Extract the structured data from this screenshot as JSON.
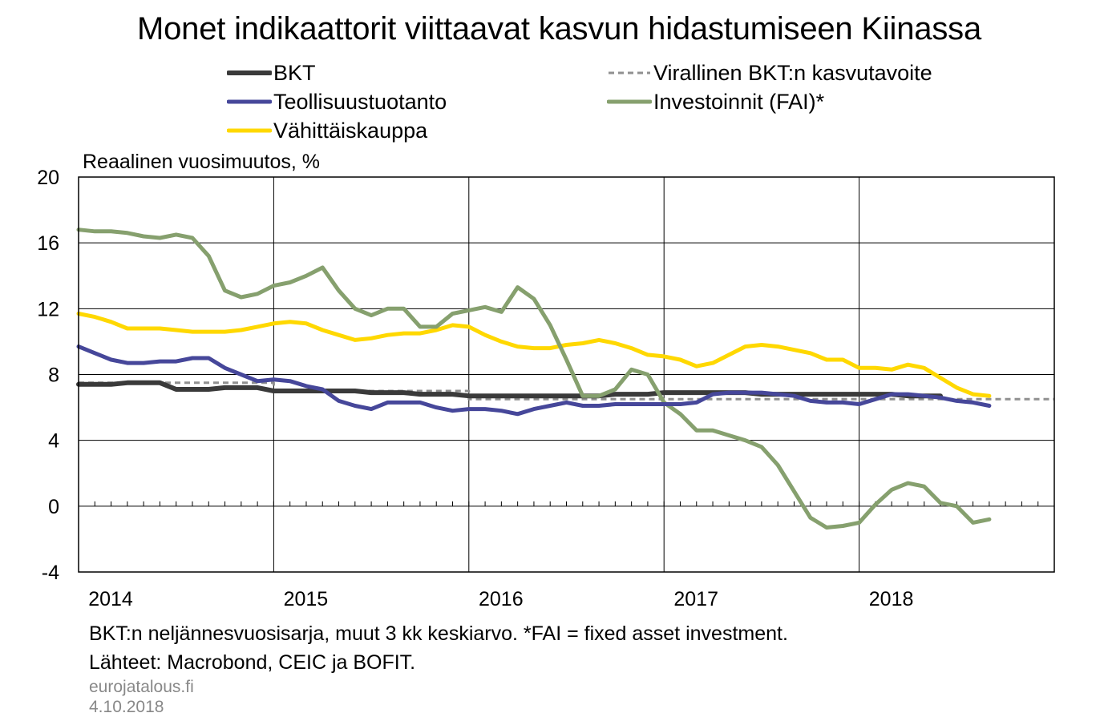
{
  "chart_data": {
    "type": "line",
    "title": "Monet indikaattorit viittaavat kasvun hidastumiseen Kiinassa",
    "ylabel": "Reaalinen vuosimuutos, %",
    "ylim": [
      -4,
      20
    ],
    "yticks": [
      "20",
      "16",
      "12",
      "8",
      "4",
      "0",
      "-4"
    ],
    "xlim": [
      "2014-01",
      "2019-01"
    ],
    "xticks": [
      "2014",
      "2015",
      "2016",
      "2017",
      "2018"
    ],
    "grid": true,
    "legend_position": "top",
    "series": [
      {
        "name": "BKT",
        "color": "#3a3a3a",
        "style": "solid",
        "points": [
          [
            "2014-01",
            7.4
          ],
          [
            "2014-03",
            7.4
          ],
          [
            "2014-04",
            7.5
          ],
          [
            "2014-06",
            7.5
          ],
          [
            "2014-07",
            7.1
          ],
          [
            "2014-09",
            7.1
          ],
          [
            "2014-10",
            7.2
          ],
          [
            "2014-12",
            7.2
          ],
          [
            "2015-01",
            7.0
          ],
          [
            "2015-06",
            7.0
          ],
          [
            "2015-07",
            6.9
          ],
          [
            "2015-09",
            6.9
          ],
          [
            "2015-10",
            6.8
          ],
          [
            "2015-12",
            6.8
          ],
          [
            "2016-01",
            6.7
          ],
          [
            "2016-09",
            6.7
          ],
          [
            "2016-10",
            6.8
          ],
          [
            "2016-12",
            6.8
          ],
          [
            "2017-01",
            6.9
          ],
          [
            "2017-06",
            6.9
          ],
          [
            "2017-07",
            6.8
          ],
          [
            "2018-03",
            6.8
          ],
          [
            "2018-04",
            6.7
          ],
          [
            "2018-06",
            6.7
          ]
        ]
      },
      {
        "name": "Virallinen BKT:n kasvutavoite",
        "color": "#909090",
        "style": "dashed",
        "points": [
          [
            "2014-01",
            7.5
          ],
          [
            "2015-01",
            7.5
          ],
          [
            "2015-01",
            7.0
          ],
          [
            "2016-01",
            7.0
          ],
          [
            "2016-01",
            6.5
          ],
          [
            "2019-01",
            6.5
          ]
        ]
      },
      {
        "name": "Teollisuustuotanto",
        "color": "#46479a",
        "style": "solid",
        "points": [
          [
            "2014-01",
            9.7
          ],
          [
            "2014-02",
            9.3
          ],
          [
            "2014-03",
            8.9
          ],
          [
            "2014-04",
            8.7
          ],
          [
            "2014-05",
            8.7
          ],
          [
            "2014-06",
            8.8
          ],
          [
            "2014-07",
            8.8
          ],
          [
            "2014-08",
            9.0
          ],
          [
            "2014-09",
            9.0
          ],
          [
            "2014-10",
            8.4
          ],
          [
            "2014-11",
            8.0
          ],
          [
            "2014-12",
            7.6
          ],
          [
            "2015-01",
            7.7
          ],
          [
            "2015-02",
            7.6
          ],
          [
            "2015-03",
            7.3
          ],
          [
            "2015-04",
            7.1
          ],
          [
            "2015-05",
            6.4
          ],
          [
            "2015-06",
            6.1
          ],
          [
            "2015-07",
            5.9
          ],
          [
            "2015-08",
            6.3
          ],
          [
            "2015-09",
            6.3
          ],
          [
            "2015-10",
            6.3
          ],
          [
            "2015-11",
            6.0
          ],
          [
            "2015-12",
            5.8
          ],
          [
            "2016-01",
            5.9
          ],
          [
            "2016-02",
            5.9
          ],
          [
            "2016-03",
            5.8
          ],
          [
            "2016-04",
            5.6
          ],
          [
            "2016-05",
            5.9
          ],
          [
            "2016-06",
            6.1
          ],
          [
            "2016-07",
            6.3
          ],
          [
            "2016-08",
            6.1
          ],
          [
            "2016-09",
            6.1
          ],
          [
            "2016-10",
            6.2
          ],
          [
            "2016-11",
            6.2
          ],
          [
            "2016-12",
            6.2
          ],
          [
            "2017-01",
            6.2
          ],
          [
            "2017-02",
            6.2
          ],
          [
            "2017-03",
            6.3
          ],
          [
            "2017-04",
            6.8
          ],
          [
            "2017-05",
            6.9
          ],
          [
            "2017-06",
            6.9
          ],
          [
            "2017-07",
            6.9
          ],
          [
            "2017-08",
            6.8
          ],
          [
            "2017-09",
            6.7
          ],
          [
            "2017-10",
            6.4
          ],
          [
            "2017-11",
            6.3
          ],
          [
            "2017-12",
            6.3
          ],
          [
            "2018-01",
            6.2
          ],
          [
            "2018-02",
            6.5
          ],
          [
            "2018-03",
            6.8
          ],
          [
            "2018-04",
            6.8
          ],
          [
            "2018-05",
            6.7
          ],
          [
            "2018-06",
            6.6
          ],
          [
            "2018-07",
            6.4
          ],
          [
            "2018-08",
            6.3
          ],
          [
            "2018-09",
            6.1
          ]
        ]
      },
      {
        "name": "Investoinnit (FAI)*",
        "color": "#86a06e",
        "style": "solid",
        "points": [
          [
            "2014-01",
            16.8
          ],
          [
            "2014-02",
            16.7
          ],
          [
            "2014-03",
            16.7
          ],
          [
            "2014-04",
            16.6
          ],
          [
            "2014-05",
            16.4
          ],
          [
            "2014-06",
            16.3
          ],
          [
            "2014-07",
            16.5
          ],
          [
            "2014-08",
            16.3
          ],
          [
            "2014-09",
            15.2
          ],
          [
            "2014-10",
            13.1
          ],
          [
            "2014-11",
            12.7
          ],
          [
            "2014-12",
            12.9
          ],
          [
            "2015-01",
            13.4
          ],
          [
            "2015-02",
            13.6
          ],
          [
            "2015-03",
            14.0
          ],
          [
            "2015-04",
            14.5
          ],
          [
            "2015-05",
            13.1
          ],
          [
            "2015-06",
            12.0
          ],
          [
            "2015-07",
            11.6
          ],
          [
            "2015-08",
            12.0
          ],
          [
            "2015-09",
            12.0
          ],
          [
            "2015-10",
            10.9
          ],
          [
            "2015-11",
            10.9
          ],
          [
            "2015-12",
            11.7
          ],
          [
            "2016-01",
            11.9
          ],
          [
            "2016-02",
            12.1
          ],
          [
            "2016-03",
            11.8
          ],
          [
            "2016-04",
            13.3
          ],
          [
            "2016-05",
            12.6
          ],
          [
            "2016-06",
            11.0
          ],
          [
            "2016-07",
            8.9
          ],
          [
            "2016-08",
            6.7
          ],
          [
            "2016-09",
            6.7
          ],
          [
            "2016-10",
            7.1
          ],
          [
            "2016-11",
            8.3
          ],
          [
            "2016-12",
            8.0
          ],
          [
            "2017-01",
            6.3
          ],
          [
            "2017-02",
            5.6
          ],
          [
            "2017-03",
            4.6
          ],
          [
            "2017-04",
            4.6
          ],
          [
            "2017-05",
            4.3
          ],
          [
            "2017-06",
            4.0
          ],
          [
            "2017-07",
            3.6
          ],
          [
            "2017-08",
            2.5
          ],
          [
            "2017-09",
            0.9
          ],
          [
            "2017-10",
            -0.7
          ],
          [
            "2017-11",
            -1.3
          ],
          [
            "2017-12",
            -1.2
          ],
          [
            "2018-01",
            -1.0
          ],
          [
            "2018-02",
            0.1
          ],
          [
            "2018-03",
            1.0
          ],
          [
            "2018-04",
            1.4
          ],
          [
            "2018-05",
            1.2
          ],
          [
            "2018-06",
            0.2
          ],
          [
            "2018-07",
            0.0
          ],
          [
            "2018-08",
            -1.0
          ],
          [
            "2018-09",
            -0.8
          ]
        ]
      },
      {
        "name": "Vähittäiskauppa",
        "color": "#ffd800",
        "style": "solid",
        "points": [
          [
            "2014-01",
            11.7
          ],
          [
            "2014-02",
            11.5
          ],
          [
            "2014-03",
            11.2
          ],
          [
            "2014-04",
            10.8
          ],
          [
            "2014-05",
            10.8
          ],
          [
            "2014-06",
            10.8
          ],
          [
            "2014-07",
            10.7
          ],
          [
            "2014-08",
            10.6
          ],
          [
            "2014-09",
            10.6
          ],
          [
            "2014-10",
            10.6
          ],
          [
            "2014-11",
            10.7
          ],
          [
            "2014-12",
            10.9
          ],
          [
            "2015-01",
            11.1
          ],
          [
            "2015-02",
            11.2
          ],
          [
            "2015-03",
            11.1
          ],
          [
            "2015-04",
            10.7
          ],
          [
            "2015-05",
            10.4
          ],
          [
            "2015-06",
            10.1
          ],
          [
            "2015-07",
            10.2
          ],
          [
            "2015-08",
            10.4
          ],
          [
            "2015-09",
            10.5
          ],
          [
            "2015-10",
            10.5
          ],
          [
            "2015-11",
            10.7
          ],
          [
            "2015-12",
            11.0
          ],
          [
            "2016-01",
            10.9
          ],
          [
            "2016-02",
            10.4
          ],
          [
            "2016-03",
            10.0
          ],
          [
            "2016-04",
            9.7
          ],
          [
            "2016-05",
            9.6
          ],
          [
            "2016-06",
            9.6
          ],
          [
            "2016-07",
            9.8
          ],
          [
            "2016-08",
            9.9
          ],
          [
            "2016-09",
            10.1
          ],
          [
            "2016-10",
            9.9
          ],
          [
            "2016-11",
            9.6
          ],
          [
            "2016-12",
            9.2
          ],
          [
            "2017-01",
            9.1
          ],
          [
            "2017-02",
            8.9
          ],
          [
            "2017-03",
            8.5
          ],
          [
            "2017-04",
            8.7
          ],
          [
            "2017-05",
            9.2
          ],
          [
            "2017-06",
            9.7
          ],
          [
            "2017-07",
            9.8
          ],
          [
            "2017-08",
            9.7
          ],
          [
            "2017-09",
            9.5
          ],
          [
            "2017-10",
            9.3
          ],
          [
            "2017-11",
            8.9
          ],
          [
            "2017-12",
            8.9
          ],
          [
            "2018-01",
            8.4
          ],
          [
            "2018-02",
            8.4
          ],
          [
            "2018-03",
            8.3
          ],
          [
            "2018-04",
            8.6
          ],
          [
            "2018-05",
            8.4
          ],
          [
            "2018-06",
            7.8
          ],
          [
            "2018-07",
            7.2
          ],
          [
            "2018-08",
            6.8
          ],
          [
            "2018-09",
            6.7
          ]
        ]
      }
    ]
  },
  "legend_order": [
    0,
    1,
    2,
    3,
    4
  ],
  "footnote": "BKT:n neljännesvuosisarja, muut 3 kk keskiarvo. *FAI = fixed asset investment.",
  "sources": "Lähteet: Macrobond, CEIC ja BOFIT.",
  "site": "eurojatalous.fi",
  "date": "4.10.2018"
}
